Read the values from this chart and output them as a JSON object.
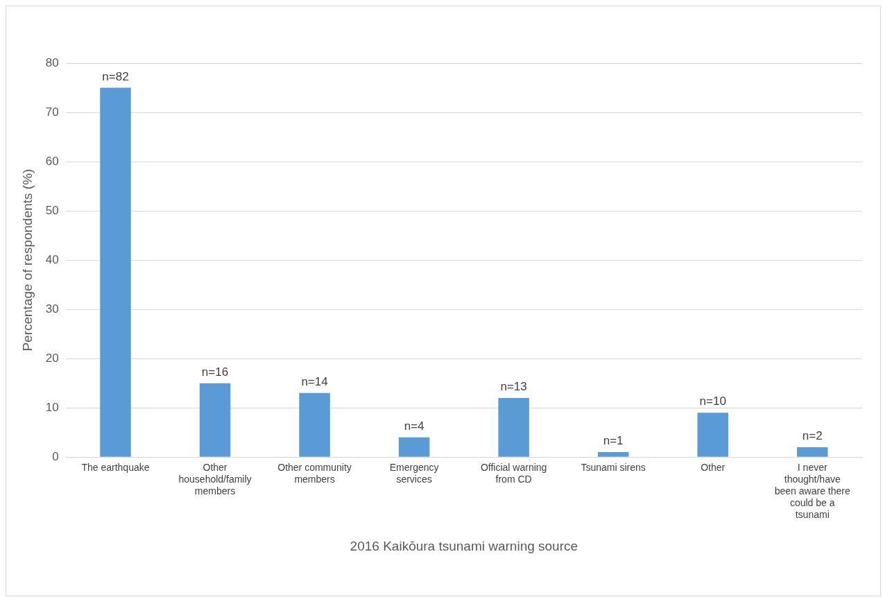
{
  "chart_data": {
    "type": "bar",
    "xlabel": "2016 Kaikōura tsunami warning source",
    "ylabel": "Percentage of respondents (%)",
    "categories": [
      "The earthquake",
      "Other household/family members",
      "Other community members",
      "Emergency services",
      "Official warning from CD",
      "Tsunami sirens",
      "Other",
      "I never thought/have been aware there could be a tsunami"
    ],
    "values": [
      75,
      15,
      13,
      4,
      12,
      1,
      9,
      2
    ],
    "annotations": [
      {
        "text": "n=82",
        "x": "The earthquake",
        "y": 75
      },
      {
        "text": "n=16",
        "x": "Other household/family members",
        "y": 15
      },
      {
        "text": "n=14",
        "x": "Other community members",
        "y": 13
      },
      {
        "text": "n=4",
        "x": "Emergency services",
        "y": 4
      },
      {
        "text": "n=13",
        "x": "Official warning from CD",
        "y": 12
      },
      {
        "text": "n=1",
        "x": "Tsunami sirens",
        "y": 1
      },
      {
        "text": "n=10",
        "x": "Other",
        "y": 9
      },
      {
        "text": "n=2",
        "x": "I never thought/have been aware there could be a tsunami",
        "y": 2
      }
    ],
    "color": "#5b9bd5",
    "ylim": [
      0,
      80
    ],
    "yticks": [
      0,
      10,
      20,
      30,
      40,
      50,
      60,
      70,
      80
    ],
    "grid": "y",
    "legend": false
  }
}
